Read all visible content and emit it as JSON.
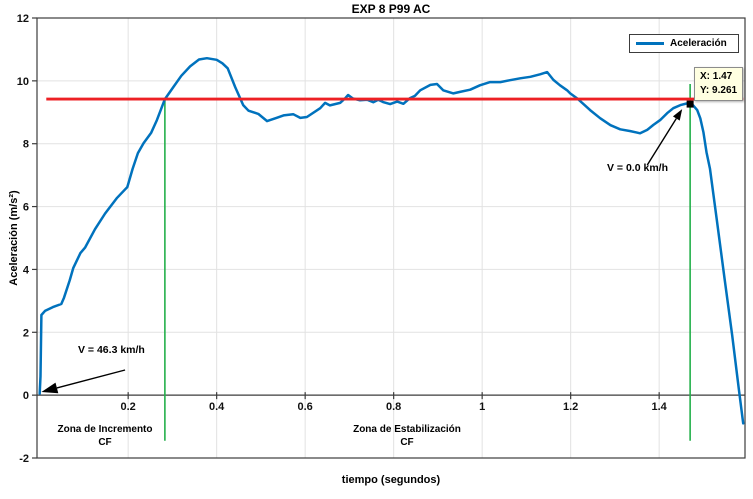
{
  "title": "EXP 8 P99 AC",
  "axis_labels": {
    "x": "tiempo (segundos)",
    "y": "Aceleración (m/s²)"
  },
  "legend": {
    "entries": [
      {
        "label": "Aceleración",
        "color": "#0072BD"
      }
    ]
  },
  "datatip": {
    "x": "X: 1.47",
    "y": "Y: 9.261"
  },
  "annotations": {
    "v_start": "V = 46.3 km/h",
    "v_end": "V = 0.0 km/h",
    "zone_increment": {
      "line1": "Zona de Incremento",
      "line2": "CF"
    },
    "zone_stabilization": {
      "line1": "Zona de Estabilización",
      "line2": "CF"
    }
  },
  "chart_data": {
    "type": "line",
    "title": "EXP 8 P99 AC",
    "xlabel": "tiempo (segundos)",
    "ylabel": "Aceleración (m/s²)",
    "xlim": [
      -0.006,
      1.594
    ],
    "ylim": [
      -2,
      12
    ],
    "xticks": [
      0.2,
      0.4,
      0.6,
      0.8,
      1,
      1.2,
      1.4
    ],
    "xtick_labels": [
      "0.2",
      "0.4",
      "0.6",
      "0.8",
      "1",
      "1.2",
      "1.4"
    ],
    "yticks": [
      -2,
      0,
      2,
      4,
      6,
      8,
      10,
      12
    ],
    "ytick_labels": [
      "-2",
      "0",
      "2",
      "4",
      "6",
      "8",
      "10",
      "12"
    ],
    "grid": true,
    "legend_position": "northeast",
    "colors": {
      "grid": "#e2e2e2",
      "axis": "#3c3c3c",
      "event": "#24b04c"
    },
    "series": [
      {
        "name": "Aceleración",
        "color": "#0072BD",
        "points": [
          [
            0.0,
            0.05
          ],
          [
            0.002,
            0.6
          ],
          [
            0.004,
            2.55
          ],
          [
            0.012,
            2.68
          ],
          [
            0.03,
            2.8
          ],
          [
            0.049,
            2.9
          ],
          [
            0.055,
            3.1
          ],
          [
            0.068,
            3.65
          ],
          [
            0.076,
            4.05
          ],
          [
            0.092,
            4.52
          ],
          [
            0.103,
            4.7
          ],
          [
            0.125,
            5.28
          ],
          [
            0.148,
            5.78
          ],
          [
            0.175,
            6.28
          ],
          [
            0.198,
            6.62
          ],
          [
            0.21,
            7.2
          ],
          [
            0.222,
            7.7
          ],
          [
            0.235,
            8.02
          ],
          [
            0.252,
            8.35
          ],
          [
            0.265,
            8.75
          ],
          [
            0.283,
            9.42
          ],
          [
            0.302,
            9.8
          ],
          [
            0.32,
            10.16
          ],
          [
            0.34,
            10.46
          ],
          [
            0.36,
            10.68
          ],
          [
            0.378,
            10.72
          ],
          [
            0.4,
            10.67
          ],
          [
            0.413,
            10.56
          ],
          [
            0.425,
            10.4
          ],
          [
            0.442,
            9.8
          ],
          [
            0.46,
            9.23
          ],
          [
            0.472,
            9.05
          ],
          [
            0.494,
            8.95
          ],
          [
            0.514,
            8.72
          ],
          [
            0.535,
            8.82
          ],
          [
            0.551,
            8.9
          ],
          [
            0.573,
            8.94
          ],
          [
            0.589,
            8.82
          ],
          [
            0.604,
            8.85
          ],
          [
            0.634,
            9.13
          ],
          [
            0.645,
            9.3
          ],
          [
            0.656,
            9.22
          ],
          [
            0.679,
            9.3
          ],
          [
            0.69,
            9.44
          ],
          [
            0.697,
            9.55
          ],
          [
            0.708,
            9.44
          ],
          [
            0.724,
            9.38
          ],
          [
            0.74,
            9.4
          ],
          [
            0.754,
            9.32
          ],
          [
            0.765,
            9.4
          ],
          [
            0.777,
            9.32
          ],
          [
            0.792,
            9.26
          ],
          [
            0.808,
            9.34
          ],
          [
            0.822,
            9.27
          ],
          [
            0.837,
            9.45
          ],
          [
            0.848,
            9.52
          ],
          [
            0.86,
            9.7
          ],
          [
            0.883,
            9.87
          ],
          [
            0.898,
            9.9
          ],
          [
            0.912,
            9.7
          ],
          [
            0.935,
            9.6
          ],
          [
            0.95,
            9.65
          ],
          [
            0.973,
            9.72
          ],
          [
            0.995,
            9.86
          ],
          [
            1.018,
            9.96
          ],
          [
            1.041,
            9.96
          ],
          [
            1.063,
            10.02
          ],
          [
            1.086,
            10.08
          ],
          [
            1.109,
            10.13
          ],
          [
            1.131,
            10.21
          ],
          [
            1.147,
            10.28
          ],
          [
            1.161,
            10.03
          ],
          [
            1.176,
            9.86
          ],
          [
            1.192,
            9.7
          ],
          [
            1.199,
            9.6
          ],
          [
            1.215,
            9.44
          ],
          [
            1.23,
            9.25
          ],
          [
            1.244,
            9.07
          ],
          [
            1.267,
            8.81
          ],
          [
            1.29,
            8.59
          ],
          [
            1.312,
            8.46
          ],
          [
            1.335,
            8.4
          ],
          [
            1.357,
            8.33
          ],
          [
            1.373,
            8.44
          ],
          [
            1.387,
            8.6
          ],
          [
            1.403,
            8.76
          ],
          [
            1.418,
            8.97
          ],
          [
            1.432,
            9.13
          ],
          [
            1.448,
            9.23
          ],
          [
            1.462,
            9.28
          ],
          [
            1.47,
            9.261
          ],
          [
            1.477,
            9.22
          ],
          [
            1.486,
            9.07
          ],
          [
            1.493,
            8.81
          ],
          [
            1.5,
            8.37
          ],
          [
            1.507,
            7.73
          ],
          [
            1.515,
            7.2
          ],
          [
            1.53,
            5.6
          ],
          [
            1.548,
            3.7
          ],
          [
            1.565,
            1.9
          ],
          [
            1.58,
            0.2
          ],
          [
            1.59,
            -0.9
          ]
        ]
      }
    ],
    "reference_line": {
      "y": 9.42,
      "x_range": [
        0.015,
        1.59
      ],
      "color": "#ed2024"
    },
    "event_lines": [
      {
        "x": 0.283,
        "y_range": [
          -1.45,
          9.42
        ]
      },
      {
        "x": 1.47,
        "y_range": [
          -1.45,
          9.9
        ]
      }
    ],
    "marker": {
      "x": 1.47,
      "y": 9.261,
      "color": "#000000"
    },
    "arrows": [
      {
        "label_ref": "v_start",
        "from": [
          0.193,
          0.8
        ],
        "to": [
          0.004,
          0.1
        ]
      },
      {
        "label_ref": "v_end",
        "from": [
          1.373,
          7.32
        ],
        "to": [
          1.452,
          9.1
        ]
      }
    ]
  }
}
